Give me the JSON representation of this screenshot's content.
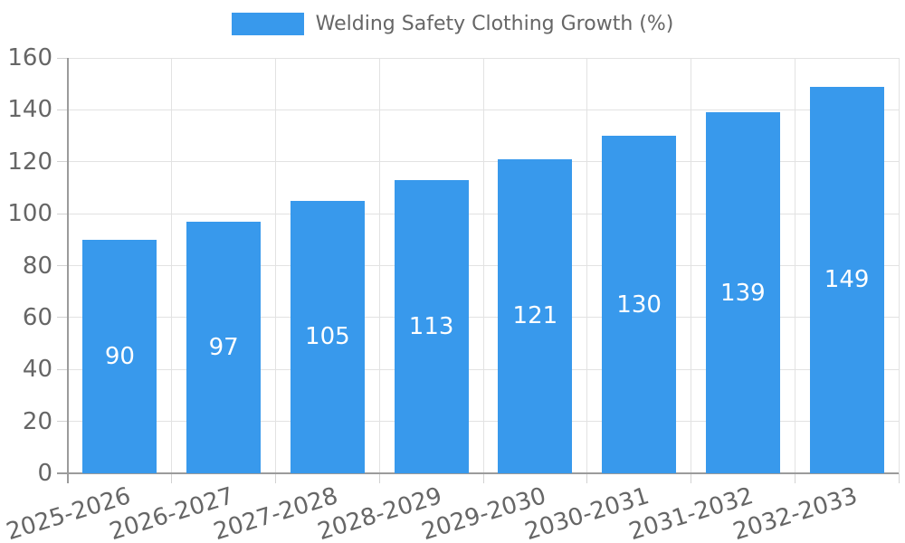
{
  "legend": {
    "label": "Welding Safety Clothing Growth (%)"
  },
  "colors": {
    "bar": "#3899EC",
    "bar_label": "#FFFFFF",
    "axis_text": "#666666",
    "gridline": "#E2E2E2",
    "tick": "#D2D2D2",
    "axis_line": "#9B9B9B",
    "background": "#FFFFFF"
  },
  "chart_data": {
    "type": "bar",
    "title": "Welding Safety Clothing Growth (%)",
    "categories": [
      "2025-2026",
      "2026-2027",
      "2027-2028",
      "2028-2029",
      "2029-2030",
      "2030-2031",
      "2031-2032",
      "2032-2033"
    ],
    "values": [
      90,
      97,
      105,
      113,
      121,
      130,
      139,
      149
    ],
    "xlabel": "",
    "ylabel": "",
    "ylim": [
      0,
      160
    ],
    "ytick_step": 20,
    "ytick_labels": [
      "0",
      "20",
      "40",
      "60",
      "80",
      "100",
      "120",
      "140",
      "160"
    ],
    "grid": true,
    "legend_position": "top-center",
    "bar_value_labels": true,
    "bar_value_label_position": "center",
    "x_tick_rotation_deg": -17
  }
}
